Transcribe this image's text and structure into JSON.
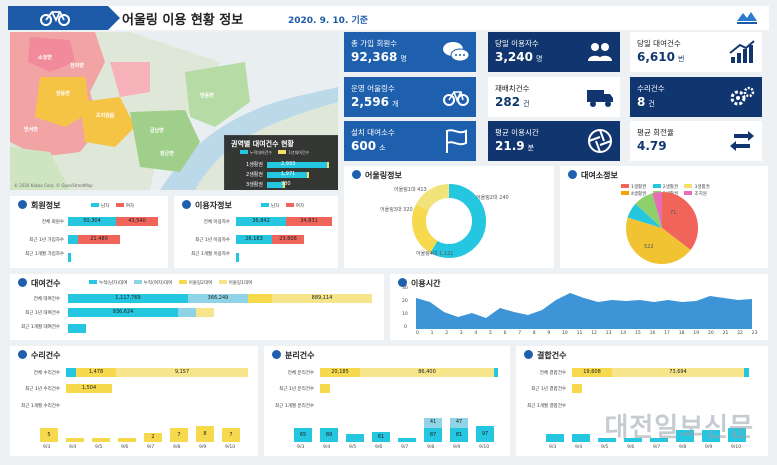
{
  "header": {
    "title": "어울링 이용 현황 정보",
    "date": "2020. 9. 10. 기준"
  },
  "map": {
    "regions": [
      "소정면",
      "전의면",
      "전동면",
      "연서면",
      "조치원읍",
      "연동면",
      "부강면",
      "금남면",
      "장군면",
      "반곡",
      "산울",
      "한솔",
      "대평"
    ],
    "note": "© 2020 Kakao Corp. © OpenStreetMap"
  },
  "overlay": {
    "title": "권역별 대여건수 현황",
    "legend": [
      "누적대여건수",
      "1년대여건수"
    ],
    "rows": [
      {
        "label": "1생활권",
        "value": "2,993",
        "v": 2993
      },
      {
        "label": "2생활권",
        "value": "1,971",
        "v": 1971
      },
      {
        "label": "3생활권",
        "value": "780",
        "v": 780
      },
      {
        "label": "4생활권",
        "value": "",
        "v": 180
      },
      {
        "label": "5생활권",
        "value": "",
        "v": 120
      },
      {
        "label": "조치원",
        "value": "",
        "v": 140
      }
    ]
  },
  "tiles": [
    {
      "label": "총 가입 회원수",
      "value": "92,368",
      "unit": "명",
      "style": "blue",
      "icon": "chat-bubbles-icon"
    },
    {
      "label": "당일 이용자수",
      "value": "3,240",
      "unit": "명",
      "style": "navy",
      "icon": "users-icon"
    },
    {
      "label": "당일 대여건수",
      "value": "6,610",
      "unit": "번",
      "style": "white",
      "icon": "growth-chart-icon"
    },
    {
      "label": "운영 어울링수",
      "value": "2,596",
      "unit": "개",
      "style": "blue",
      "icon": "bicycle-icon"
    },
    {
      "label": "재배치건수",
      "value": "282",
      "unit": "건",
      "style": "white",
      "icon": "truck-icon"
    },
    {
      "label": "수리건수",
      "value": "8",
      "unit": "건",
      "style": "navy",
      "icon": "gears-icon"
    },
    {
      "label": "설치 대여소수",
      "value": "600",
      "unit": "소",
      "style": "blue",
      "icon": "flag-icon"
    },
    {
      "label": "평균 이용시간",
      "value": "21.9",
      "unit": "분",
      "style": "navy",
      "icon": "shutter-icon"
    },
    {
      "label": "평균 회전율",
      "value": "4.79",
      "unit": "",
      "style": "white",
      "icon": "rotate-arrows-icon"
    }
  ],
  "member": {
    "title": "회원정보",
    "legend": [
      "남자",
      "여자"
    ],
    "rows": [
      "전체 회원수",
      "최근 1년 가입자수",
      "최근 1개월 가입자수"
    ],
    "values": [
      [
        "50,304",
        "43,540"
      ],
      [
        "21,480",
        ""
      ],
      [
        "",
        ""
      ]
    ]
  },
  "user": {
    "title": "이용자정보",
    "legend": [
      "남자",
      "여자"
    ],
    "rows": [
      "전체 이용자수",
      "최근 1년 이용자수",
      "최근 1개월 이용자수"
    ],
    "values": [
      [
        "36,842",
        "34,831"
      ],
      [
        "26,183",
        "23,608"
      ],
      [
        "",
        ""
      ]
    ]
  },
  "station": {
    "title": "어울링정보",
    "labels": [
      "어울링1대 413",
      "어울링2대 240",
      "어울링3대 320",
      "어울링4대 1,121"
    ]
  },
  "rental_station": {
    "title": "대여소정보",
    "legend": [
      "1생활권",
      "2생활권",
      "3생활권",
      "4생활권",
      "5생활권",
      "조치원"
    ],
    "labels": [
      "71",
      "522"
    ]
  },
  "rental": {
    "title": "대여건수",
    "legend": [
      "누적(남자)대여",
      "누적(여자)대여",
      "어울링2대여",
      "어울링1대여"
    ],
    "rows": [
      "전체 대여건수",
      "최근 1년 대여건수",
      "최근 1개월 대여건수"
    ],
    "values": [
      [
        "1,117,769",
        "366,249",
        "",
        "889,114"
      ],
      [
        "936,624",
        "",
        "",
        ""
      ],
      [
        "",
        "",
        "",
        ""
      ]
    ]
  },
  "usage_time": {
    "title": "이용시간",
    "y_ticks": [
      "0",
      "10",
      "20",
      "30"
    ],
    "x_ticks": [
      "0",
      "1",
      "2",
      "3",
      "4",
      "5",
      "6",
      "7",
      "8",
      "9",
      "10",
      "11",
      "12",
      "13",
      "14",
      "15",
      "16",
      "17",
      "18",
      "19",
      "20",
      "21",
      "22",
      "23"
    ]
  },
  "repair": {
    "title": "수리건수",
    "rows": [
      "전체 수리건수",
      "최근 1년 수리건수",
      "최근 1개월 수리건수"
    ],
    "values": [
      "1,478",
      "9,157",
      "1,504"
    ],
    "days": [
      "9/3",
      "9/4",
      "9/5",
      "9/6",
      "9/7",
      "9/8",
      "9/9",
      "9/10"
    ],
    "day_values": [
      "5",
      "",
      "",
      "",
      "2",
      "7",
      "8",
      "7"
    ]
  },
  "breakdown": {
    "title": "분리건수",
    "rows": [
      "전체 분리건수",
      "최근 1년 분리건수",
      "최근 1개월 분리건수"
    ],
    "values": [
      "20,185",
      "86,400"
    ],
    "days": [
      "9/3",
      "9/4",
      "9/5",
      "9/6",
      "9/7",
      "9/8",
      "9/9",
      "9/10"
    ],
    "day_values": [
      "65",
      "89",
      "",
      "61",
      "",
      "87",
      "81",
      "97"
    ],
    "day_top": [
      "",
      "",
      "",
      "",
      "",
      "41",
      "47",
      ""
    ]
  },
  "failure": {
    "title": "결합건수",
    "rows": [
      "전체 결합건수",
      "최근 1년 결합건수",
      "최근 1개월 결합건수"
    ],
    "values": [
      "19,608",
      "73,694"
    ],
    "days": [
      "9/3",
      "9/4",
      "9/5",
      "9/6",
      "9/7",
      "9/8",
      "9/9",
      "9/10"
    ]
  },
  "watermark": "대전일보신문"
}
